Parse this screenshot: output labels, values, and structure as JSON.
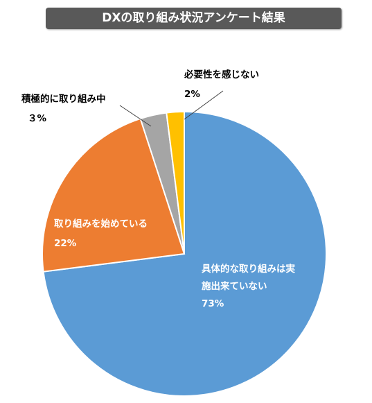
{
  "chart_data": {
    "type": "pie",
    "title": "DXの取り組み状況アンケート結果",
    "start_angle_deg": 0,
    "direction": "clockwise",
    "slices": [
      {
        "label_lines": [
          "具体的な取り組みは実",
          "施出来ていない"
        ],
        "value_text": "73%",
        "value": 73,
        "color": "#5B9BD5",
        "text_color": "#ffffff"
      },
      {
        "label_lines": [
          "取り組みを始めている"
        ],
        "value_text": "22%",
        "value": 22,
        "color": "#ED7D31",
        "text_color": "#ffffff"
      },
      {
        "label_lines": [
          "積極的に取り組み中"
        ],
        "value_text": "３%",
        "value": 3,
        "color": "#A5A5A5",
        "text_color": "#000000"
      },
      {
        "label_lines": [
          "必要性を感じない"
        ],
        "value_text": "2%",
        "value": 2,
        "color": "#FFC000",
        "text_color": "#000000"
      }
    ]
  }
}
